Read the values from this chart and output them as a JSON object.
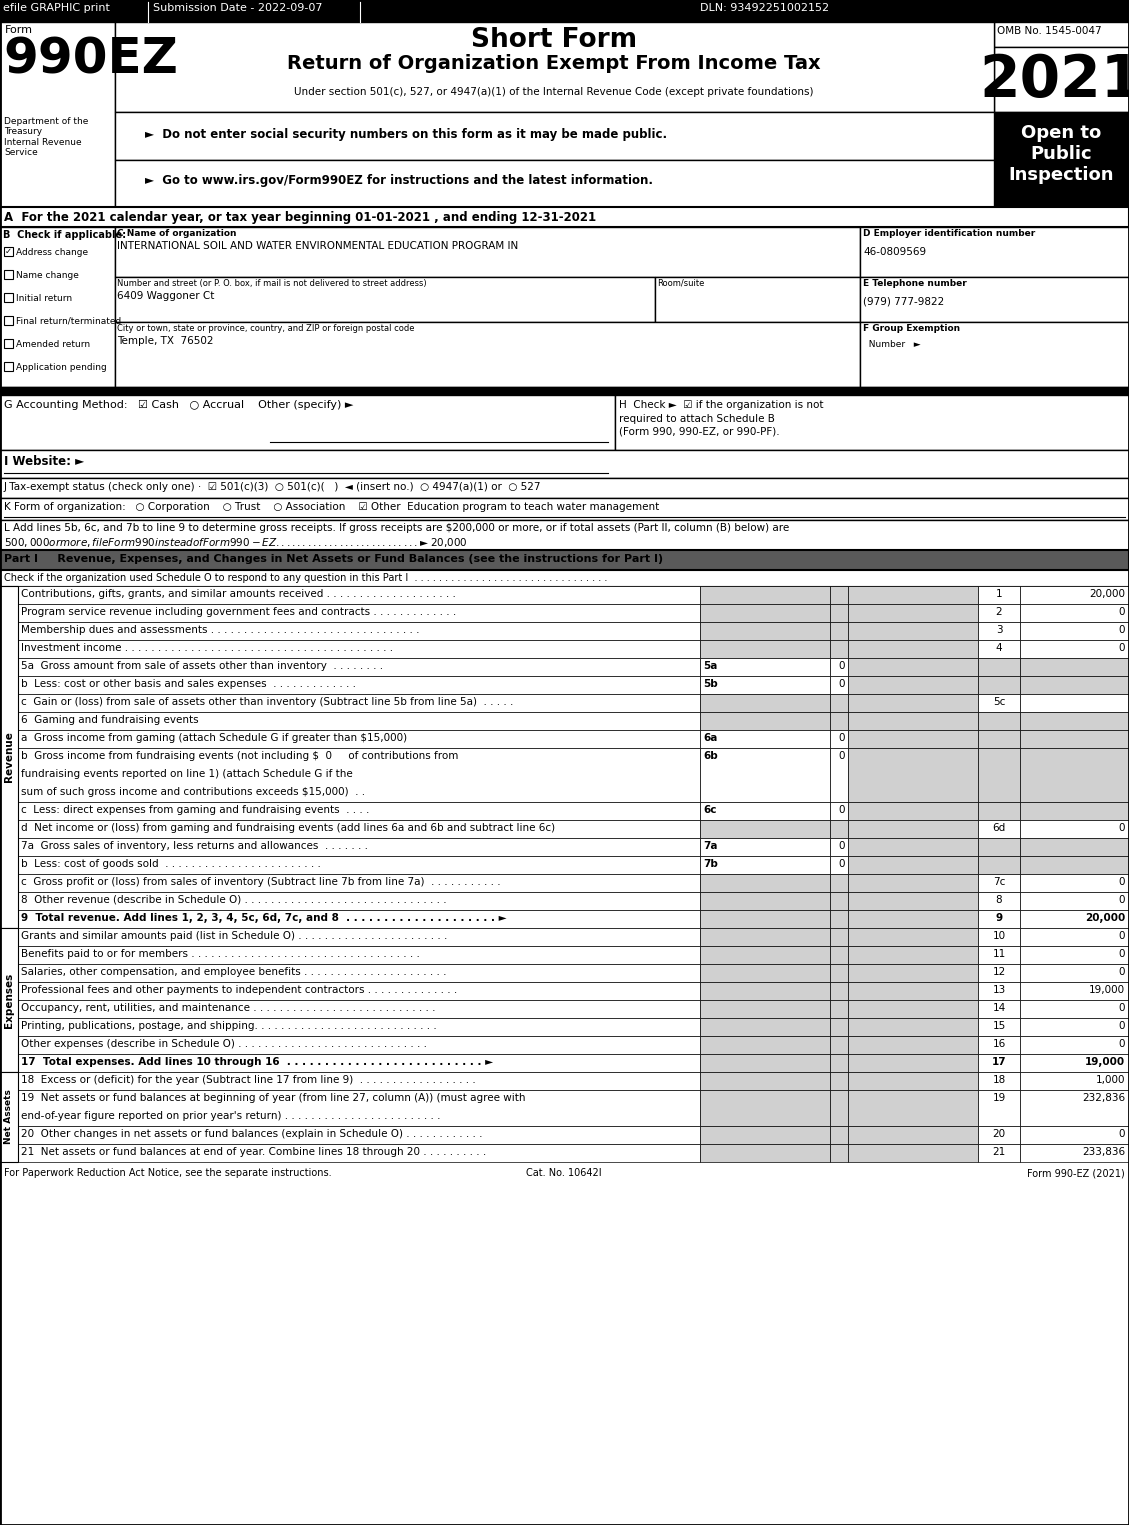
{
  "title": "Short Form",
  "subtitle": "Return of Organization Exempt From Income Tax",
  "year": "2021",
  "omb": "OMB No. 1545-0047",
  "efile_text": "efile GRAPHIC print",
  "submission_date": "Submission Date - 2022-09-07",
  "dln": "DLN: 93492251002152",
  "under_section": "Under section 501(c), 527, or 4947(a)(1) of the Internal Revenue Code (except private foundations)",
  "bullet1": "►  Do not enter social security numbers on this form as it may be made public.",
  "bullet2": "►  Go to www.irs.gov/Form990EZ for instructions and the latest information.",
  "open_to": "Open to\nPublic\nInspection",
  "form_label": "Form",
  "form_number": "990EZ",
  "dept": "Department of the\nTreasury\nInternal Revenue\nService",
  "line_A": "A  For the 2021 calendar year, or tax year beginning 01-01-2021 , and ending 12-31-2021",
  "B_label": "B  Check if applicable:",
  "checkboxes_B": [
    {
      "checked": true,
      "label": "Address change"
    },
    {
      "checked": false,
      "label": "Name change"
    },
    {
      "checked": false,
      "label": "Initial return"
    },
    {
      "checked": false,
      "label": "Final return/terminated"
    },
    {
      "checked": false,
      "label": "Amended return"
    },
    {
      "checked": false,
      "label": "Application pending"
    }
  ],
  "C_label": "C Name of organization",
  "C_value": "INTERNATIONAL SOIL AND WATER ENVIRONMENTAL EDUCATION PROGRAM IN",
  "D_label": "D Employer identification number",
  "D_value": "46-0809569",
  "E_label": "E Telephone number",
  "E_value": "(979) 777-9822",
  "street_label": "Number and street (or P. O. box, if mail is not delivered to street address)",
  "street_value": "6409 Waggoner Ct",
  "room_label": "Room/suite",
  "city_label": "City or town, state or province, country, and ZIP or foreign postal code",
  "city_value": "Temple, TX  76502",
  "F_label": "F Group Exemption",
  "F_label2": "  Number",
  "G_line": "G Accounting Method:   ☑ Cash   ○ Accrual    Other (specify) ►",
  "H_line1": "H  Check ►  ☑ if the organization is not",
  "H_line2": "required to attach Schedule B",
  "H_line3": "(Form 990, 990-EZ, or 990-PF).",
  "I_line": "I Website: ►",
  "J_line": "J Tax-exempt status (check only one) ·  ☑ 501(c)(3)  ○ 501(c)(   )  ◄ (insert no.)  ○ 4947(a)(1) or  ○ 527",
  "K_line": "K Form of organization:   ○ Corporation    ○ Trust    ○ Association    ☑ Other  Education program to teach water management",
  "L_line1": "L Add lines 5b, 6c, and 7b to line 9 to determine gross receipts. If gross receipts are $200,000 or more, or if total assets (Part II, column (B) below) are",
  "L_line2": "$500,000 or more, file Form 990 instead of Form 990-EZ . . . . . . . . . . . . . . . . . . . . . . . . . . . ► $ 20,000",
  "part1_header": "Part I     Revenue, Expenses, and Changes in Net Assets or Fund Balances (see the instructions for Part I)",
  "part1_check": "Check if the organization used Schedule O to respond to any question in this Part I  . . . . . . . . . . . . . . . . . . . . . . . . . . . . . . . .",
  "revenue_rows": [
    {
      "label": "Contributions, gifts, grants, and similar amounts received . . . . . . . . . . . . . . . . . . . .",
      "line": "1",
      "value": "20,000"
    },
    {
      "label": "Program service revenue including government fees and contracts . . . . . . . . . . . . .",
      "line": "2",
      "value": "0"
    },
    {
      "label": "Membership dues and assessments . . . . . . . . . . . . . . . . . . . . . . . . . . . . . . . .",
      "line": "3",
      "value": "0"
    },
    {
      "label": "Investment income . . . . . . . . . . . . . . . . . . . . . . . . . . . . . . . . . . . . . . . . .",
      "line": "4",
      "value": "0"
    }
  ],
  "row_5a_label": "5a  Gross amount from sale of assets other than inventory  . . . . . . . .",
  "row_5a_col": "5a",
  "row_5a_val": "0",
  "row_5b_label": "b  Less: cost or other basis and sales expenses  . . . . . . . . . . . . .",
  "row_5b_col": "5b",
  "row_5b_val": "0",
  "row_5c_label": "c  Gain or (loss) from sale of assets other than inventory (Subtract line 5b from line 5a)  . . . . .",
  "row_5c_line": "5c",
  "row_6_label": "6  Gaming and fundraising events",
  "row_6a_label": "a  Gross income from gaming (attach Schedule G if greater than $15,000)",
  "row_6a_col": "6a",
  "row_6a_val": "0",
  "row_6b_line1": "b  Gross income from fundraising events (not including $  0     of contributions from",
  "row_6b_line2": "fundraising events reported on line 1) (attach Schedule G if the",
  "row_6b_line3": "sum of such gross income and contributions exceeds $15,000)  . .",
  "row_6b_col": "6b",
  "row_6b_val": "0",
  "row_6c_label": "c  Less: direct expenses from gaming and fundraising events  . . . .",
  "row_6c_col": "6c",
  "row_6c_val": "0",
  "row_6d_label": "d  Net income or (loss) from gaming and fundraising events (add lines 6a and 6b and subtract line 6c)",
  "row_6d_line": "6d",
  "row_6d_val": "0",
  "row_7a_label": "7a  Gross sales of inventory, less returns and allowances  . . . . . . .",
  "row_7a_col": "7a",
  "row_7a_val": "0",
  "row_7b_label": "b  Less: cost of goods sold  . . . . . . . . . . . . . . . . . . . . . . . .",
  "row_7b_col": "7b",
  "row_7b_val": "0",
  "row_7c_label": "c  Gross profit or (loss) from sales of inventory (Subtract line 7b from line 7a)  . . . . . . . . . . .",
  "row_7c_line": "7c",
  "row_7c_val": "0",
  "row_8_label": "8  Other revenue (describe in Schedule O) . . . . . . . . . . . . . . . . . . . . . . . . . . . . . . .",
  "row_8_line": "8",
  "row_8_val": "0",
  "row_9_label": "9  Total revenue. Add lines 1, 2, 3, 4, 5c, 6d, 7c, and 8  . . . . . . . . . . . . . . . . . . . . ►",
  "row_9_line": "9",
  "row_9_val": "20,000",
  "expenses_rows": [
    {
      "label": "Grants and similar amounts paid (list in Schedule O) . . . . . . . . . . . . . . . . . . . . . . .",
      "line": "10",
      "value": "0"
    },
    {
      "label": "Benefits paid to or for members . . . . . . . . . . . . . . . . . . . . . . . . . . . . . . . . . . .",
      "line": "11",
      "value": "0"
    },
    {
      "label": "Salaries, other compensation, and employee benefits . . . . . . . . . . . . . . . . . . . . . .",
      "line": "12",
      "value": "0"
    },
    {
      "label": "Professional fees and other payments to independent contractors . . . . . . . . . . . . . .",
      "line": "13",
      "value": "19,000"
    },
    {
      "label": "Occupancy, rent, utilities, and maintenance . . . . . . . . . . . . . . . . . . . . . . . . . . . .",
      "line": "14",
      "value": "0"
    },
    {
      "label": "Printing, publications, postage, and shipping. . . . . . . . . . . . . . . . . . . . . . . . . . . .",
      "line": "15",
      "value": "0"
    },
    {
      "label": "Other expenses (describe in Schedule O) . . . . . . . . . . . . . . . . . . . . . . . . . . . . .",
      "line": "16",
      "value": "0"
    }
  ],
  "row_17_label": "17  Total expenses. Add lines 10 through 16  . . . . . . . . . . . . . . . . . . . . . . . . . . ►",
  "row_17_line": "17",
  "row_17_val": "19,000",
  "row_18_label": "18  Excess or (deficit) for the year (Subtract line 17 from line 9)  . . . . . . . . . . . . . . . . . .",
  "row_18_line": "18",
  "row_18_val": "1,000",
  "row_19_label1": "19  Net assets or fund balances at beginning of year (from line 27, column (A)) (must agree with",
  "row_19_label2": "end-of-year figure reported on prior year's return) . . . . . . . . . . . . . . . . . . . . . . . .",
  "row_19_line": "19",
  "row_19_val": "232,836",
  "row_20_label": "20  Other changes in net assets or fund balances (explain in Schedule O) . . . . . . . . . . . .",
  "row_20_line": "20",
  "row_20_val": "0",
  "row_21_label": "21  Net assets or fund balances at end of year. Combine lines 18 through 20 . . . . . . . . . .",
  "row_21_line": "21",
  "row_21_val": "233,836",
  "footer_left": "For Paperwork Reduction Act Notice, see the separate instructions.",
  "footer_cat": "Cat. No. 10642I",
  "footer_right": "Form 990-EZ (2021)",
  "side_label_revenue": "Revenue",
  "side_label_expenses": "Expenses",
  "side_label_netassets": "Net Assets"
}
